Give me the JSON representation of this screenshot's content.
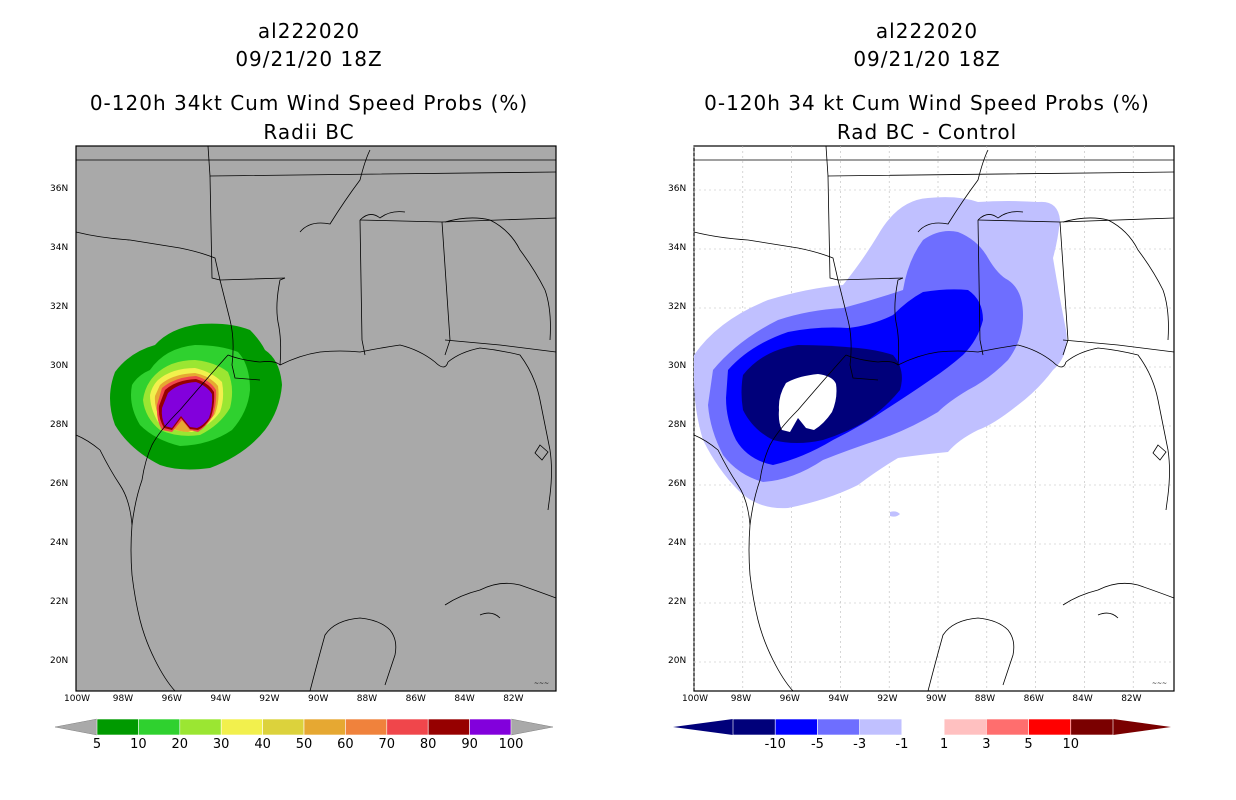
{
  "left_panel": {
    "storm_id": "al222020",
    "datetime": "09/21/20 18Z",
    "product": "0-120h 34kt Cum Wind Speed Probs (%)",
    "subtitle": "Radii BC",
    "map_background": "#a9a9a9",
    "colorbar": {
      "colors": [
        "#009a00",
        "#2fd12f",
        "#9be632",
        "#f2f04d",
        "#dcd23c",
        "#e6a832",
        "#f0823c",
        "#f0464b",
        "#960000",
        "#8200dc"
      ],
      "labels": [
        "5",
        "10",
        "20",
        "30",
        "40",
        "50",
        "60",
        "70",
        "80",
        "90",
        "100"
      ]
    }
  },
  "right_panel": {
    "storm_id": "al222020",
    "datetime": "09/21/20 18Z",
    "product": "0-120h 34 kt Cum Wind Speed Probs (%)",
    "subtitle": "Rad BC - Control",
    "map_background": "#ffffff",
    "colorbar": {
      "colors": [
        "#00007a",
        "#0000ff",
        "#6e6eff",
        "#c0c0ff",
        "#ffffff",
        "#ffc0c0",
        "#ff6e6e",
        "#ff0000",
        "#7a0000"
      ],
      "labels": [
        "-10",
        "-5",
        "-3",
        "-1",
        "1",
        "3",
        "5",
        "10"
      ]
    }
  },
  "axes": {
    "lon_labels": [
      "100W",
      "98W",
      "96W",
      "94W",
      "92W",
      "90W",
      "88W",
      "86W",
      "84W",
      "82W"
    ],
    "lat_labels": [
      "36N",
      "34N",
      "32N",
      "30N",
      "28N",
      "26N",
      "24N",
      "22N",
      "20N"
    ]
  },
  "chart_data": {
    "type": "heatmap",
    "projection": "lat-lon",
    "domain": {
      "lon_range": [
        -100,
        -80.3
      ],
      "lat_range": [
        19,
        37.5
      ]
    },
    "left_field": {
      "name": "0-120h 34kt cumulative wind speed probability, Radii BC",
      "units": "%",
      "contour_levels": [
        5,
        10,
        20,
        30,
        40,
        50,
        60,
        70,
        80,
        90,
        100
      ],
      "max_region_center": {
        "lon": -95.5,
        "lat": 29.0
      }
    },
    "right_field": {
      "name": "Difference Rad BC - Control",
      "units": "%",
      "contour_levels": [
        -10,
        -5,
        -3,
        -1,
        1,
        3,
        5,
        10
      ],
      "min_region_center": {
        "lon": -96.0,
        "lat": 29.3
      }
    }
  }
}
